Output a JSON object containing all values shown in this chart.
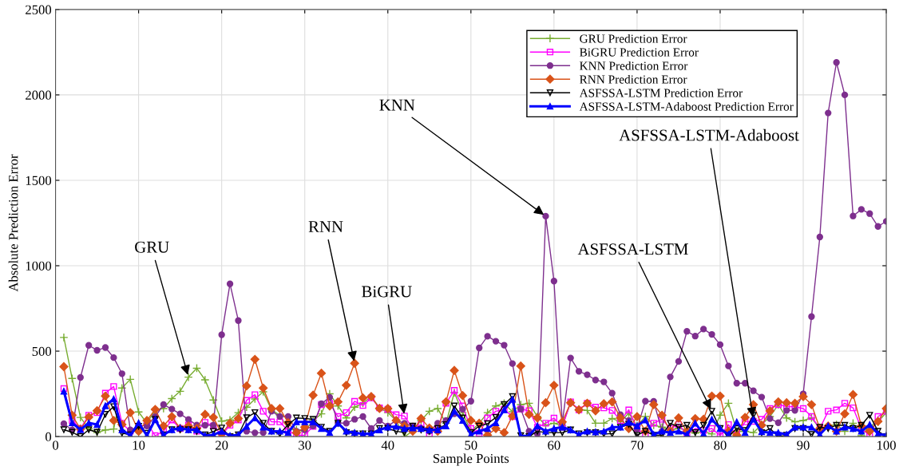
{
  "chart_data": {
    "type": "line",
    "xlabel": "Sample Points",
    "ylabel": "Absolute Prediction Error",
    "x": [
      1,
      2,
      3,
      4,
      5,
      6,
      7,
      8,
      9,
      10,
      11,
      12,
      13,
      14,
      15,
      16,
      17,
      18,
      19,
      20,
      21,
      22,
      23,
      24,
      25,
      26,
      27,
      28,
      29,
      30,
      31,
      32,
      33,
      34,
      35,
      36,
      37,
      38,
      39,
      40,
      41,
      42,
      43,
      44,
      45,
      46,
      47,
      48,
      49,
      50,
      51,
      52,
      53,
      54,
      55,
      56,
      57,
      58,
      59,
      60,
      61,
      62,
      63,
      64,
      65,
      66,
      67,
      68,
      69,
      70,
      71,
      72,
      73,
      74,
      75,
      76,
      77,
      78,
      79,
      80,
      81,
      82,
      83,
      84,
      85,
      86,
      87,
      88,
      89,
      90,
      91,
      92,
      93,
      94,
      95,
      96,
      97,
      98,
      99,
      100
    ],
    "xlim": [
      0,
      100
    ],
    "xticks": [
      0,
      10,
      20,
      30,
      40,
      50,
      60,
      70,
      80,
      90,
      100
    ],
    "ylim": [
      0,
      2500
    ],
    "yticks": [
      0,
      500,
      1000,
      1500,
      2000,
      2500
    ],
    "grid": true,
    "legend": "top right",
    "series": [
      {
        "name": "GRU Prediction Error",
        "color": "#77ac30",
        "marker": "cross",
        "values": [
          580,
          340,
          112,
          47,
          23,
          39,
          44,
          284,
          335,
          144,
          78,
          156,
          164,
          222,
          265,
          348,
          400,
          332,
          214,
          90,
          97,
          140,
          172,
          220,
          262,
          156,
          125,
          47,
          39,
          31,
          94,
          133,
          250,
          179,
          109,
          172,
          195,
          234,
          168,
          140,
          94,
          0,
          31,
          94,
          148,
          164,
          78,
          257,
          140,
          31,
          78,
          140,
          179,
          195,
          145,
          187,
          195,
          117,
          66,
          78,
          62,
          198,
          161,
          153,
          78,
          78,
          106,
          86,
          137,
          62,
          117,
          66,
          55,
          39,
          47,
          40,
          20,
          30,
          15,
          125,
          195,
          31,
          31,
          23,
          70,
          117,
          187,
          109,
          86,
          94,
          109,
          47,
          60,
          70,
          31,
          78,
          5,
          62,
          86,
          140
        ]
      },
      {
        "name": "BiGRU Prediction Error",
        "color": "#ff00ff",
        "marker": "square",
        "values": [
          281,
          94,
          47,
          125,
          140,
          254,
          293,
          78,
          31,
          47,
          80,
          5,
          31,
          97,
          47,
          67,
          31,
          83,
          62,
          9,
          66,
          97,
          212,
          245,
          148,
          86,
          86,
          34,
          8,
          8,
          60,
          187,
          195,
          117,
          140,
          206,
          182,
          226,
          168,
          159,
          128,
          120,
          47,
          70,
          16,
          47,
          195,
          270,
          179,
          47,
          19,
          109,
          148,
          159,
          117,
          161,
          151,
          55,
          78,
          108,
          55,
          203,
          156,
          195,
          172,
          168,
          153,
          94,
          156,
          47,
          12,
          78,
          101,
          47,
          70,
          12,
          47,
          36,
          47,
          5,
          70,
          8,
          86,
          89,
          101,
          164,
          187,
          175,
          175,
          164,
          117,
          47,
          148,
          156,
          195,
          168,
          47,
          5,
          117,
          148
        ]
      },
      {
        "name": "KNN Prediction Error",
        "color": "#7e2f8e",
        "marker": "circle",
        "values": [
          75,
          39,
          346,
          534,
          505,
          521,
          462,
          368,
          39,
          31,
          62,
          117,
          187,
          161,
          133,
          100,
          67,
          66,
          67,
          596,
          894,
          679,
          31,
          22,
          23,
          148,
          117,
          117,
          31,
          40,
          62,
          192,
          230,
          80,
          78,
          101,
          117,
          47,
          94,
          62,
          94,
          78,
          62,
          47,
          31,
          78,
          94,
          133,
          160,
          207,
          519,
          587,
          558,
          535,
          427,
          161,
          31,
          16,
          1290,
          910,
          78,
          460,
          382,
          362,
          331,
          320,
          254,
          128,
          94,
          47,
          207,
          206,
          31,
          349,
          440,
          616,
          588,
          629,
          598,
          538,
          413,
          312,
          312,
          268,
          231,
          105,
          81,
          153,
          153,
          250,
          702,
          1168,
          1894,
          2190,
          2000,
          1291,
          1330,
          1305,
          1230,
          1260
        ]
      },
      {
        "name": "RNN Prediction Error",
        "color": "#d95319",
        "marker": "diamond",
        "values": [
          409,
          125,
          44,
          114,
          151,
          237,
          94,
          70,
          140,
          31,
          94,
          159,
          62,
          117,
          47,
          62,
          47,
          130,
          112,
          16,
          78,
          106,
          296,
          452,
          284,
          164,
          164,
          81,
          23,
          55,
          242,
          371,
          179,
          203,
          300,
          429,
          226,
          234,
          164,
          164,
          94,
          62,
          31,
          106,
          50,
          31,
          203,
          387,
          240,
          94,
          78,
          8,
          47,
          23,
          120,
          413,
          130,
          109,
          198,
          300,
          86,
          198,
          156,
          195,
          151,
          192,
          203,
          109,
          47,
          117,
          31,
          187,
          125,
          31,
          109,
          30,
          105,
          101,
          237,
          237,
          31,
          8,
          112,
          187,
          66,
          150,
          203,
          198,
          195,
          234,
          187,
          47,
          62,
          31,
          133,
          246,
          62,
          31,
          89,
          164
        ]
      },
      {
        "name": "ASFSSA-LSTM Prediction Error",
        "color": "#000000",
        "marker": "triangle_down",
        "values": [
          40,
          25,
          0,
          40,
          25,
          130,
          175,
          20,
          10,
          60,
          20,
          100,
          10,
          40,
          40,
          40,
          30,
          10,
          30,
          50,
          0,
          10,
          110,
          140,
          78,
          31,
          16,
          70,
          109,
          106,
          101,
          55,
          31,
          78,
          23,
          16,
          16,
          16,
          47,
          47,
          31,
          23,
          62,
          39,
          31,
          47,
          70,
          179,
          109,
          23,
          62,
          75,
          112,
          187,
          234,
          5,
          0,
          31,
          23,
          23,
          23,
          39,
          16,
          23,
          23,
          16,
          16,
          55,
          70,
          8,
          31,
          8,
          8,
          78,
          55,
          66,
          23,
          66,
          148,
          47,
          0,
          47,
          36,
          125,
          23,
          47,
          0,
          8,
          47,
          47,
          12,
          55,
          47,
          66,
          66,
          47,
          66,
          125,
          31,
          0
        ]
      },
      {
        "name": "ASFSSA-LSTM-Adaboost Prediction Error",
        "color": "#0000ff",
        "marker": "triangle",
        "values": [
          265,
          80,
          40,
          80,
          70,
          180,
          220,
          40,
          5,
          80,
          5,
          100,
          10,
          40,
          50,
          40,
          40,
          5,
          10,
          30,
          5,
          10,
          60,
          109,
          55,
          31,
          31,
          23,
          86,
          86,
          86,
          47,
          23,
          78,
          31,
          23,
          16,
          16,
          39,
          55,
          59,
          47,
          50,
          47,
          39,
          39,
          62,
          148,
          94,
          12,
          31,
          47,
          81,
          156,
          218,
          3,
          5,
          62,
          31,
          47,
          55,
          39,
          12,
          31,
          27,
          31,
          55,
          55,
          83,
          62,
          97,
          12,
          31,
          23,
          31,
          12,
          78,
          16,
          101,
          47,
          12,
          86,
          23,
          101,
          28,
          23,
          23,
          12,
          55,
          55,
          55,
          12,
          62,
          31,
          55,
          47,
          31,
          70,
          16,
          8
        ]
      }
    ],
    "annotations": [
      {
        "text": "GRU",
        "x": 16,
        "y": 348
      },
      {
        "text": "RNN",
        "x": 36,
        "y": 429
      },
      {
        "text": "BiGRU",
        "x": 42,
        "y": 120
      },
      {
        "text": "KNN",
        "x": 59,
        "y": 1290
      },
      {
        "text": "ASFSSA-LSTM",
        "x": 79,
        "y": 148
      },
      {
        "text": "ASFSSA-LSTM-Adaboost",
        "x": 84,
        "y": 101
      }
    ]
  }
}
